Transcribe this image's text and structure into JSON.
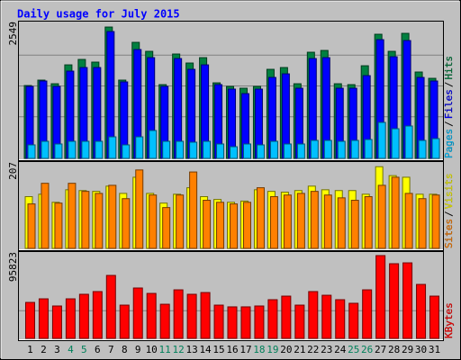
{
  "chart_data": {
    "type": "bar",
    "title": "Daily usage for July 2015",
    "separator": "/",
    "categories": [
      "1",
      "2",
      "3",
      "4",
      "5",
      "6",
      "7",
      "8",
      "9",
      "10",
      "11",
      "12",
      "13",
      "14",
      "15",
      "16",
      "17",
      "18",
      "19",
      "20",
      "21",
      "22",
      "23",
      "24",
      "25",
      "26",
      "27",
      "28",
      "29",
      "30",
      "31"
    ],
    "category_colors": [
      "#000000",
      "#000000",
      "#000000",
      "#00805a",
      "#00805a",
      "#000000",
      "#000000",
      "#000000",
      "#000000",
      "#000000",
      "#00805a",
      "#00805a",
      "#000000",
      "#000000",
      "#000000",
      "#000000",
      "#000000",
      "#00805a",
      "#00805a",
      "#000000",
      "#000000",
      "#000000",
      "#000000",
      "#000000",
      "#00805a",
      "#00805a",
      "#000000",
      "#000000",
      "#000000",
      "#000000",
      "#000000"
    ],
    "panels": [
      {
        "ylim": [
          0,
          2549
        ],
        "yticks": [
          2549
        ],
        "series": [
          {
            "name": "Hits",
            "color": "#008040",
            "values": [
              1385,
              1488,
              1419,
              1778,
              1881,
              1830,
              2497,
              1488,
              2206,
              2035,
              1402,
              1984,
              1813,
              1915,
              1436,
              1368,
              1334,
              1368,
              1693,
              1727,
              1419,
              2018,
              2052,
              1419,
              1402,
              1761,
              2360,
              2035,
              2377,
              1642,
              1522
            ]
          },
          {
            "name": "Files",
            "color": "#0000ff",
            "values": [
              1368,
              1471,
              1368,
              1659,
              1727,
              1727,
              2411,
              1454,
              2069,
              1915,
              1368,
              1898,
              1693,
              1778,
              1402,
              1317,
              1231,
              1317,
              1539,
              1607,
              1334,
              1898,
              1915,
              1334,
              1334,
              1573,
              2257,
              1932,
              2240,
              1539,
              1471
            ]
          },
          {
            "name": "Pages",
            "color": "#00c0ff",
            "values": [
              257,
              325,
              274,
              325,
              325,
              325,
              410,
              257,
              410,
              530,
              325,
              325,
              308,
              325,
              274,
              222,
              274,
              257,
              325,
              274,
              274,
              342,
              342,
              325,
              342,
              359,
              684,
              564,
              616,
              342,
              376
            ]
          }
        ]
      },
      {
        "ylim": [
          0,
          207
        ],
        "yticks": [
          207
        ],
        "series": [
          {
            "name": "Visits",
            "color": "#ffff00",
            "values": [
              128,
              134,
              114,
              145,
              143,
              141,
              154,
              136,
              176,
              136,
              112,
              134,
              150,
              128,
              121,
              114,
              117,
              145,
              141,
              139,
              143,
              154,
              145,
              143,
              143,
              134,
              202,
              180,
              176,
              134,
              134
            ]
          },
          {
            "name": "Sites",
            "color": "#ff8000",
            "values": [
              110,
              161,
              112,
              161,
              141,
              136,
              156,
              123,
              194,
              132,
              101,
              132,
              189,
              119,
              114,
              110,
              114,
              150,
              128,
              132,
              136,
              141,
              132,
              125,
              119,
              128,
              156,
              176,
              136,
              123,
              132
            ]
          }
        ]
      },
      {
        "ylim": [
          0,
          95823
        ],
        "yticks": [
          95823
        ],
        "series": [
          {
            "name": "KBytes",
            "color": "#ff0000",
            "values": [
              41200,
              45300,
              37100,
              45300,
              50500,
              53600,
              72100,
              38100,
              57700,
              51500,
              39100,
              55600,
              50500,
              52500,
              38100,
              36100,
              36100,
              37100,
              44300,
              48400,
              38100,
              53600,
              49400,
              44300,
              40200,
              55600,
              94800,
              85500,
              86500,
              61800,
              48400
            ]
          }
        ]
      }
    ]
  }
}
